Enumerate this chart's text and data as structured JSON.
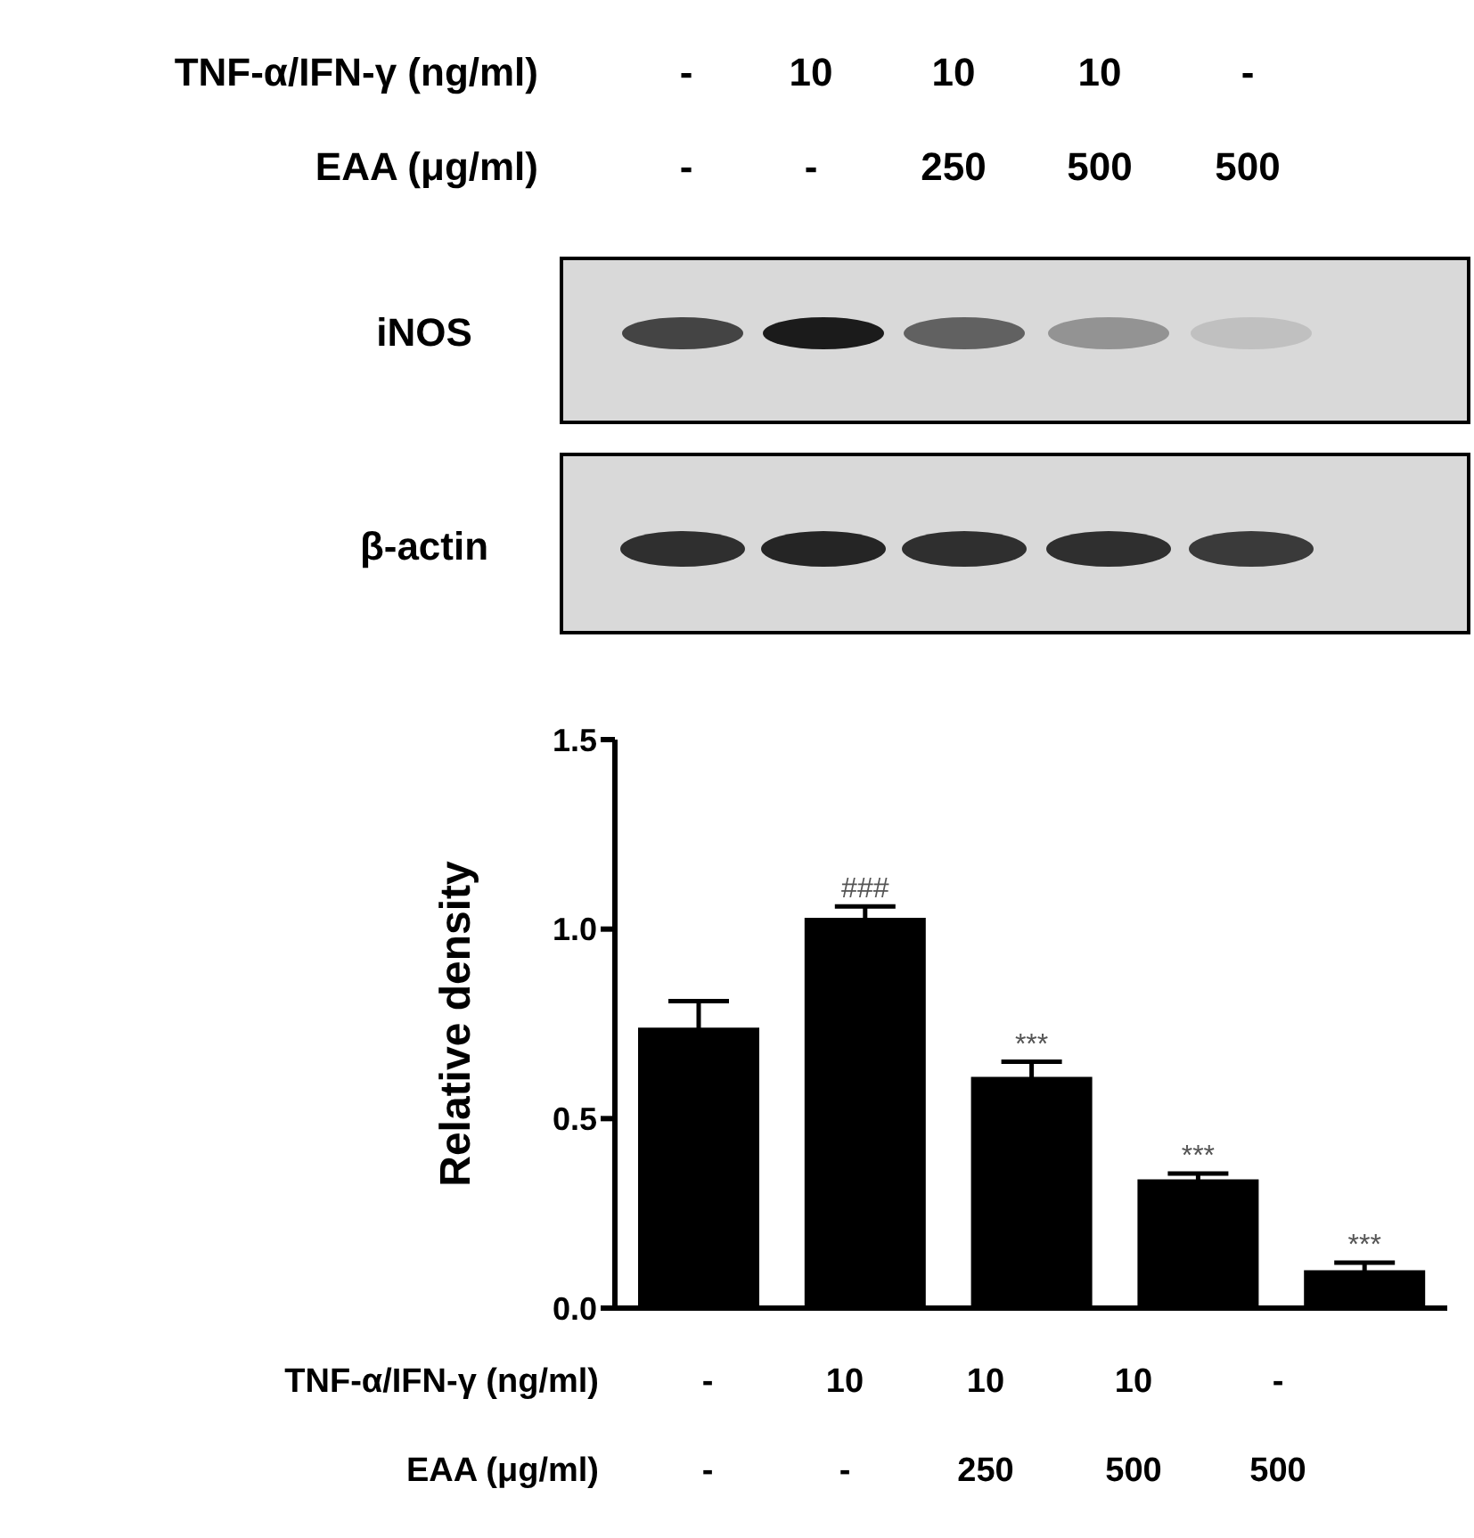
{
  "chart_data": {
    "type": "bar",
    "ylabel": "Relative density",
    "categories": [
      null,
      null,
      null,
      null,
      null
    ],
    "values": [
      0.74,
      1.03,
      0.61,
      0.34,
      0.1
    ],
    "errors": [
      0.07,
      0.03,
      0.04,
      0.015,
      0.02
    ],
    "color": "#000000",
    "ylim": [
      0,
      1.5
    ],
    "yticks": [
      {
        "value": 0,
        "label": "0.0"
      },
      {
        "value": 0.5,
        "label": "0.5"
      },
      {
        "value": 1,
        "label": "1.0"
      },
      {
        "value": 1.5,
        "label": "1.5"
      }
    ],
    "value_labels": [
      null,
      "###",
      "***",
      "***",
      "***"
    ],
    "annotations": [
      "TNF-α/IFN-γ (ng/ml)",
      "-",
      "10",
      "10",
      "10",
      "-",
      "EAA (μg/ml)",
      "-",
      "-",
      "250",
      "500",
      "500",
      "iNOS",
      "β-actin",
      "TNF-α/IFN-γ (ng/ml)",
      "-",
      "10",
      "10",
      "10",
      "-",
      "EAA (μg/ml)",
      "-",
      "-",
      "250",
      "500",
      "500"
    ]
  }
}
